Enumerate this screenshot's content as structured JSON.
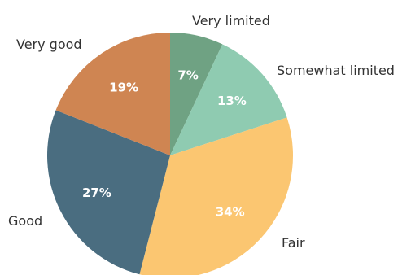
{
  "chart_data": {
    "type": "pie",
    "start_angle_deg": 0,
    "direction": "clockwise",
    "slices": [
      {
        "category": "Very limited",
        "value": 7,
        "value_label": "7%",
        "color": "#6fa283"
      },
      {
        "category": "Somewhat limited",
        "value": 13,
        "value_label": "13%",
        "color": "#8fcbb1"
      },
      {
        "category": "Fair",
        "value": 34,
        "value_label": "34%",
        "color": "#fbc671"
      },
      {
        "category": "Good",
        "value": 27,
        "value_label": "27%",
        "color": "#4a6d80"
      },
      {
        "category": "Very good",
        "value": 19,
        "value_label": "19%",
        "color": "#cf8552"
      }
    ]
  }
}
